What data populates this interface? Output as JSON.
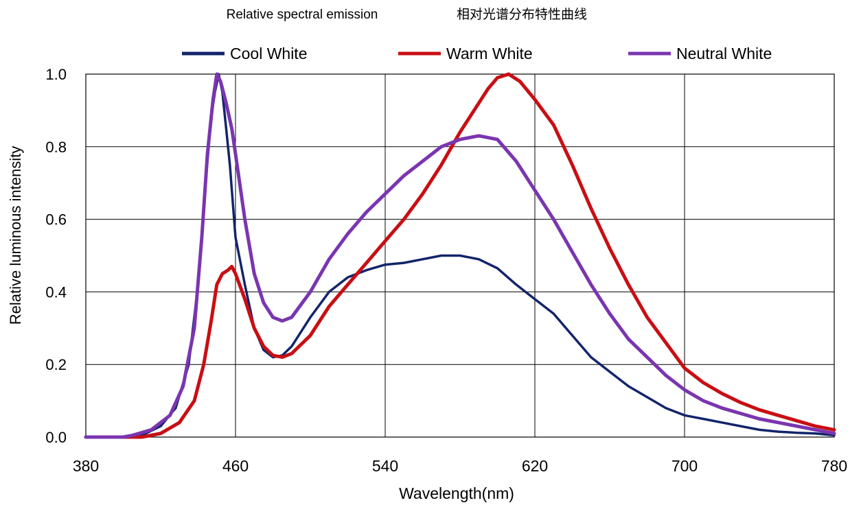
{
  "chart_data": {
    "type": "line",
    "title": "Relative spectral emission",
    "subtitle": "相对光谱分布特性曲线",
    "xlabel": "Wavelength(nm)",
    "ylabel": "Relative luminous intensity",
    "xlim": [
      380,
      780
    ],
    "ylim": [
      0.0,
      1.0
    ],
    "x_ticks": [
      "380",
      "460",
      "540",
      "620",
      "700",
      "780"
    ],
    "y_ticks": [
      "0.0",
      "0.2",
      "0.4",
      "0.6",
      "0.8",
      "1.0"
    ],
    "grid": true,
    "legend_position": "top",
    "series": [
      {
        "name": "Cool White",
        "color": "#12246a",
        "points": [
          [
            380,
            0.0
          ],
          [
            400,
            0.0
          ],
          [
            410,
            0.005
          ],
          [
            420,
            0.03
          ],
          [
            428,
            0.08
          ],
          [
            435,
            0.2
          ],
          [
            440,
            0.42
          ],
          [
            444,
            0.7
          ],
          [
            447,
            0.88
          ],
          [
            449,
            0.95
          ],
          [
            451,
            1.0
          ],
          [
            453,
            0.95
          ],
          [
            455,
            0.85
          ],
          [
            457,
            0.75
          ],
          [
            460,
            0.55
          ],
          [
            465,
            0.42
          ],
          [
            470,
            0.3
          ],
          [
            475,
            0.24
          ],
          [
            480,
            0.22
          ],
          [
            485,
            0.225
          ],
          [
            490,
            0.25
          ],
          [
            500,
            0.33
          ],
          [
            510,
            0.4
          ],
          [
            520,
            0.44
          ],
          [
            530,
            0.46
          ],
          [
            540,
            0.475
          ],
          [
            550,
            0.48
          ],
          [
            560,
            0.49
          ],
          [
            570,
            0.5
          ],
          [
            580,
            0.5
          ],
          [
            590,
            0.49
          ],
          [
            600,
            0.465
          ],
          [
            610,
            0.42
          ],
          [
            620,
            0.38
          ],
          [
            630,
            0.34
          ],
          [
            640,
            0.28
          ],
          [
            650,
            0.22
          ],
          [
            660,
            0.18
          ],
          [
            670,
            0.14
          ],
          [
            680,
            0.11
          ],
          [
            690,
            0.08
          ],
          [
            700,
            0.06
          ],
          [
            710,
            0.05
          ],
          [
            720,
            0.04
          ],
          [
            730,
            0.03
          ],
          [
            740,
            0.02
          ],
          [
            750,
            0.015
          ],
          [
            760,
            0.012
          ],
          [
            770,
            0.01
          ],
          [
            780,
            0.005
          ]
        ]
      },
      {
        "name": "Warm White",
        "color": "#c80f14",
        "points": [
          [
            380,
            0.0
          ],
          [
            410,
            0.0
          ],
          [
            420,
            0.01
          ],
          [
            430,
            0.04
          ],
          [
            438,
            0.1
          ],
          [
            443,
            0.2
          ],
          [
            447,
            0.32
          ],
          [
            450,
            0.42
          ],
          [
            453,
            0.45
          ],
          [
            456,
            0.46
          ],
          [
            458,
            0.47
          ],
          [
            460,
            0.45
          ],
          [
            465,
            0.38
          ],
          [
            470,
            0.3
          ],
          [
            475,
            0.25
          ],
          [
            480,
            0.225
          ],
          [
            485,
            0.22
          ],
          [
            490,
            0.23
          ],
          [
            500,
            0.28
          ],
          [
            510,
            0.36
          ],
          [
            520,
            0.42
          ],
          [
            530,
            0.48
          ],
          [
            540,
            0.54
          ],
          [
            550,
            0.6
          ],
          [
            560,
            0.67
          ],
          [
            570,
            0.75
          ],
          [
            580,
            0.84
          ],
          [
            590,
            0.92
          ],
          [
            595,
            0.96
          ],
          [
            600,
            0.99
          ],
          [
            606,
            1.0
          ],
          [
            612,
            0.98
          ],
          [
            620,
            0.93
          ],
          [
            630,
            0.86
          ],
          [
            640,
            0.75
          ],
          [
            650,
            0.63
          ],
          [
            660,
            0.52
          ],
          [
            670,
            0.42
          ],
          [
            680,
            0.33
          ],
          [
            690,
            0.26
          ],
          [
            700,
            0.19
          ],
          [
            710,
            0.15
          ],
          [
            720,
            0.12
          ],
          [
            730,
            0.095
          ],
          [
            740,
            0.075
          ],
          [
            750,
            0.06
          ],
          [
            760,
            0.045
          ],
          [
            770,
            0.03
          ],
          [
            780,
            0.02
          ]
        ]
      },
      {
        "name": "Neutral White",
        "color": "#7a35b0",
        "points": [
          [
            380,
            0.0
          ],
          [
            400,
            0.0
          ],
          [
            405,
            0.005
          ],
          [
            415,
            0.02
          ],
          [
            425,
            0.06
          ],
          [
            432,
            0.14
          ],
          [
            438,
            0.3
          ],
          [
            442,
            0.55
          ],
          [
            445,
            0.78
          ],
          [
            448,
            0.93
          ],
          [
            450,
            1.0
          ],
          [
            452,
            0.98
          ],
          [
            455,
            0.92
          ],
          [
            458,
            0.85
          ],
          [
            460,
            0.78
          ],
          [
            465,
            0.6
          ],
          [
            470,
            0.45
          ],
          [
            475,
            0.37
          ],
          [
            480,
            0.33
          ],
          [
            485,
            0.32
          ],
          [
            490,
            0.33
          ],
          [
            500,
            0.4
          ],
          [
            510,
            0.49
          ],
          [
            520,
            0.56
          ],
          [
            530,
            0.62
          ],
          [
            540,
            0.67
          ],
          [
            550,
            0.72
          ],
          [
            560,
            0.76
          ],
          [
            570,
            0.8
          ],
          [
            580,
            0.82
          ],
          [
            590,
            0.83
          ],
          [
            600,
            0.82
          ],
          [
            610,
            0.76
          ],
          [
            620,
            0.68
          ],
          [
            630,
            0.6
          ],
          [
            640,
            0.51
          ],
          [
            650,
            0.42
          ],
          [
            660,
            0.34
          ],
          [
            670,
            0.27
          ],
          [
            680,
            0.22
          ],
          [
            690,
            0.17
          ],
          [
            700,
            0.13
          ],
          [
            710,
            0.1
          ],
          [
            720,
            0.08
          ],
          [
            730,
            0.065
          ],
          [
            740,
            0.05
          ],
          [
            750,
            0.04
          ],
          [
            760,
            0.03
          ],
          [
            770,
            0.02
          ],
          [
            780,
            0.01
          ]
        ]
      }
    ]
  }
}
